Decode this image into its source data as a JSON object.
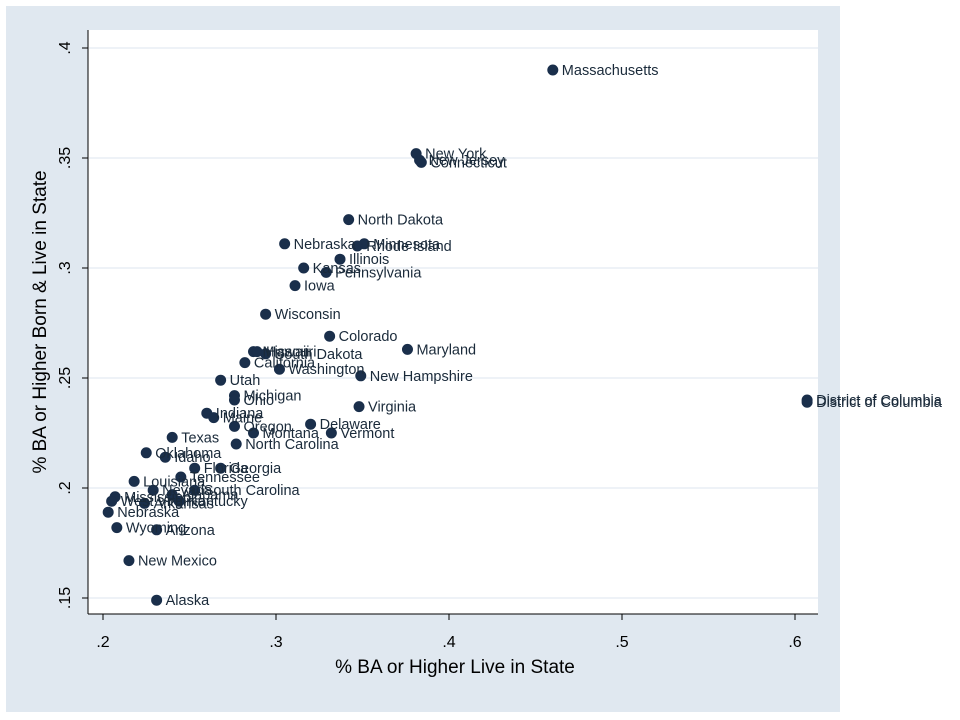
{
  "chart_data": {
    "type": "scatter",
    "title": "",
    "xlabel": "% BA or Higher Live in State",
    "ylabel": "% BA or Higher Born & Live in State",
    "xlim": [
      0.2,
      0.61
    ],
    "ylim": [
      0.145,
      0.4
    ],
    "xticks": [
      0.2,
      0.3,
      0.4,
      0.5,
      0.6
    ],
    "xtick_labels": [
      ".2",
      ".3",
      ".4",
      ".5",
      ".6"
    ],
    "yticks": [
      0.15,
      0.2,
      0.25,
      0.3,
      0.35,
      0.4
    ],
    "ytick_labels": [
      ".15",
      ".2",
      ".25",
      ".3",
      ".35",
      ".4"
    ],
    "grid": true,
    "colors": {
      "background": "#e0e8f0",
      "plot": "#ffffff",
      "marker": "#1a2f4b",
      "grid": "#e3ebf2"
    },
    "points": [
      {
        "label": "Massachusetts",
        "x": 0.46,
        "y": 0.39
      },
      {
        "label": "New York",
        "x": 0.381,
        "y": 0.352
      },
      {
        "label": "New Jersey",
        "x": 0.383,
        "y": 0.349
      },
      {
        "label": "Connecticut",
        "x": 0.384,
        "y": 0.348
      },
      {
        "label": "North Dakota",
        "x": 0.342,
        "y": 0.322
      },
      {
        "label": "Nebraska",
        "x": 0.305,
        "y": 0.311
      },
      {
        "label": "Minnesota",
        "x": 0.351,
        "y": 0.311
      },
      {
        "label": "Rhode Island",
        "x": 0.347,
        "y": 0.31
      },
      {
        "label": "Illinois",
        "x": 0.337,
        "y": 0.304
      },
      {
        "label": "Kansas",
        "x": 0.316,
        "y": 0.3
      },
      {
        "label": "Pennsylvania",
        "x": 0.329,
        "y": 0.298
      },
      {
        "label": "Iowa",
        "x": 0.311,
        "y": 0.292
      },
      {
        "label": "Wisconsin",
        "x": 0.294,
        "y": 0.279
      },
      {
        "label": "Colorado",
        "x": 0.331,
        "y": 0.269
      },
      {
        "label": "Maryland",
        "x": 0.376,
        "y": 0.263
      },
      {
        "label": "Missouri",
        "x": 0.287,
        "y": 0.262
      },
      {
        "label": "Hawaii",
        "x": 0.289,
        "y": 0.262
      },
      {
        "label": "South Dakota",
        "x": 0.294,
        "y": 0.261
      },
      {
        "label": "California",
        "x": 0.282,
        "y": 0.257
      },
      {
        "label": "Alaska",
        "x": 0.231,
        "y": 0.149
      },
      {
        "label": "Washington",
        "x": 0.302,
        "y": 0.254
      },
      {
        "label": "New Hampshire",
        "x": 0.349,
        "y": 0.251
      },
      {
        "label": "Utah",
        "x": 0.268,
        "y": 0.249
      },
      {
        "label": "Michigan",
        "x": 0.276,
        "y": 0.242
      },
      {
        "label": "Ohio",
        "x": 0.276,
        "y": 0.24
      },
      {
        "label": "District of Columbia",
        "x": 0.607,
        "y": 0.24
      },
      {
        "label": "District of Columbia",
        "x": 0.607,
        "y": 0.239
      },
      {
        "label": "Virginia",
        "x": 0.348,
        "y": 0.237
      },
      {
        "label": "Indiana",
        "x": 0.26,
        "y": 0.234
      },
      {
        "label": "Maine",
        "x": 0.264,
        "y": 0.232
      },
      {
        "label": "Oregon",
        "x": 0.276,
        "y": 0.228
      },
      {
        "label": "Delaware",
        "x": 0.32,
        "y": 0.229
      },
      {
        "label": "Montana",
        "x": 0.287,
        "y": 0.225
      },
      {
        "label": "Vermont",
        "x": 0.332,
        "y": 0.225
      },
      {
        "label": "Texas",
        "x": 0.24,
        "y": 0.223
      },
      {
        "label": "North Carolina",
        "x": 0.277,
        "y": 0.22
      },
      {
        "label": "Oklahoma",
        "x": 0.225,
        "y": 0.216
      },
      {
        "label": "Idaho",
        "x": 0.236,
        "y": 0.214
      },
      {
        "label": "Florida",
        "x": 0.253,
        "y": 0.209
      },
      {
        "label": "Georgia",
        "x": 0.268,
        "y": 0.209
      },
      {
        "label": "Tennessee",
        "x": 0.245,
        "y": 0.205
      },
      {
        "label": "Louisiana",
        "x": 0.218,
        "y": 0.203
      },
      {
        "label": "Nevada",
        "x": 0.229,
        "y": 0.199
      },
      {
        "label": "South Carolina",
        "x": 0.253,
        "y": 0.199
      },
      {
        "label": "Alabama",
        "x": 0.24,
        "y": 0.197
      },
      {
        "label": "Mississippi",
        "x": 0.207,
        "y": 0.196
      },
      {
        "label": "West Virginia",
        "x": 0.205,
        "y": 0.194
      },
      {
        "label": "Kentucky",
        "x": 0.244,
        "y": 0.194
      },
      {
        "label": "New Mexico",
        "x": 0.215,
        "y": 0.167
      },
      {
        "label": "Arkansas",
        "x": 0.224,
        "y": 0.193
      },
      {
        "label": "Nebraska",
        "x": 0.203,
        "y": 0.189
      },
      {
        "label": "Wyoming",
        "x": 0.208,
        "y": 0.182
      },
      {
        "label": "Arizona",
        "x": 0.231,
        "y": 0.181
      }
    ]
  }
}
